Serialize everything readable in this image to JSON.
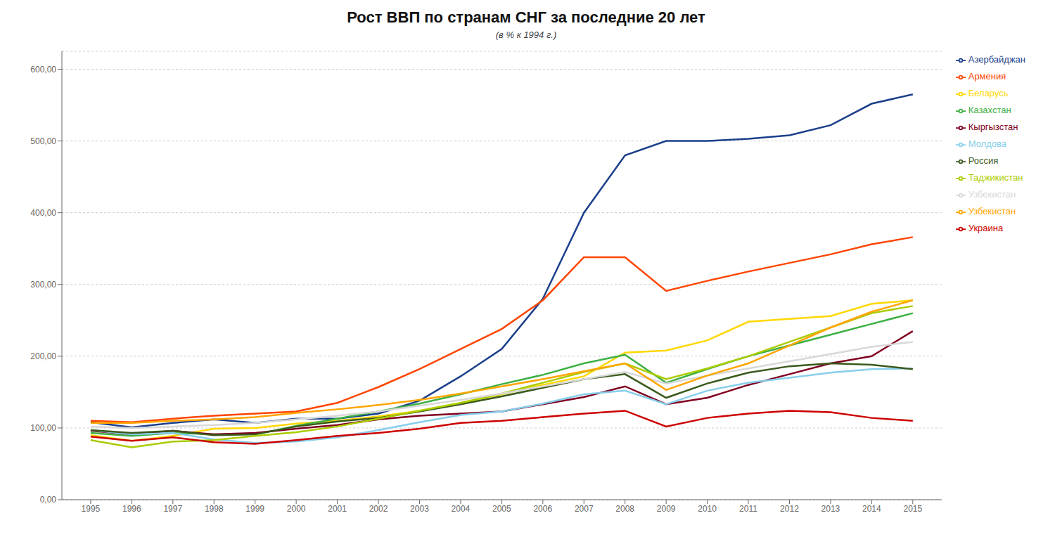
{
  "chart_data": {
    "type": "line",
    "title": "Рост ВВП по странам СНГ за последние 20 лет",
    "subtitle": "(в % к 1994 г.)",
    "x": [
      1995,
      1996,
      1997,
      1998,
      1999,
      2000,
      2001,
      2002,
      2003,
      2004,
      2005,
      2006,
      2007,
      2008,
      2009,
      2010,
      2011,
      2012,
      2013,
      2014,
      2015
    ],
    "series": [
      {
        "name": "Азербайджан",
        "color": "#1b3f8b",
        "values": [
          108,
          101,
          107,
          112,
          107,
          113,
          113,
          120,
          138,
          172,
          210,
          280,
          400,
          480,
          500,
          500,
          503,
          508,
          522,
          552,
          565
        ]
      },
      {
        "name": "Армения",
        "color": "#ff4500",
        "values": [
          110,
          108,
          113,
          117,
          120,
          123,
          135,
          157,
          182,
          210,
          238,
          278,
          338,
          338,
          291,
          305,
          318,
          330,
          342,
          356,
          366
        ]
      },
      {
        "name": "Беларусь",
        "color": "#ffd700",
        "values": [
          90,
          82,
          89,
          99,
          100,
          106,
          110,
          116,
          124,
          135,
          147,
          160,
          172,
          205,
          208,
          222,
          248,
          252,
          256,
          273,
          278
        ]
      },
      {
        "name": "Казахстан",
        "color": "#3cb043",
        "values": [
          93,
          89,
          93,
          91,
          91,
          103,
          113,
          123,
          134,
          147,
          161,
          174,
          190,
          202,
          163,
          182,
          200,
          215,
          230,
          245,
          260
        ]
      },
      {
        "name": "Кыргызстан",
        "color": "#800020",
        "values": [
          96,
          91,
          96,
          91,
          93,
          99,
          104,
          112,
          117,
          120,
          123,
          133,
          143,
          158,
          133,
          142,
          160,
          175,
          190,
          200,
          235
        ]
      },
      {
        "name": "Молдова",
        "color": "#87ceeb",
        "values": [
          97,
          91,
          93,
          84,
          79,
          81,
          87,
          97,
          108,
          118,
          123,
          134,
          147,
          152,
          133,
          152,
          163,
          170,
          177,
          182,
          183
        ]
      },
      {
        "name": "Россия",
        "color": "#3a5a1c",
        "values": [
          97,
          93,
          96,
          90,
          91,
          102,
          109,
          114,
          123,
          133,
          144,
          156,
          168,
          175,
          142,
          162,
          177,
          186,
          190,
          188,
          182
        ]
      },
      {
        "name": "Таджикистан",
        "color": "#aacc00",
        "values": [
          83,
          73,
          81,
          83,
          89,
          94,
          102,
          113,
          124,
          135,
          148,
          163,
          178,
          190,
          168,
          183,
          200,
          220,
          240,
          260,
          270
        ]
      },
      {
        "name": "Узбекистан",
        "color": "#d8d8d8",
        "values": [
          102,
          100,
          102,
          104,
          107,
          112,
          117,
          123,
          131,
          139,
          148,
          158,
          168,
          178,
          162,
          173,
          183,
          193,
          203,
          213,
          220
        ]
      },
      {
        "name": "Узбекистан",
        "color": "#ffa500",
        "values": [
          107,
          107,
          110,
          112,
          115,
          121,
          126,
          132,
          139,
          148,
          158,
          168,
          179,
          190,
          153,
          173,
          190,
          215,
          240,
          262,
          278
        ]
      },
      {
        "name": "Украина",
        "color": "#cc0000",
        "values": [
          88,
          82,
          87,
          80,
          78,
          83,
          89,
          93,
          99,
          107,
          110,
          115,
          120,
          124,
          102,
          114,
          120,
          124,
          122,
          114,
          110
        ]
      }
    ],
    "xlim": [
      1994.3,
      2015.7
    ],
    "xticks": [
      1995,
      1996,
      1997,
      1998,
      1999,
      2000,
      2001,
      2002,
      2003,
      2004,
      2005,
      2006,
      2007,
      2008,
      2009,
      2010,
      2011,
      2012,
      2013,
      2014,
      2015
    ],
    "ylim": [
      0,
      625
    ],
    "yticks": [
      {
        "value": 0,
        "label": "0,00"
      },
      {
        "value": 100,
        "label": "100,00"
      },
      {
        "value": 200,
        "label": "200,00"
      },
      {
        "value": 300,
        "label": "300,00"
      },
      {
        "value": 400,
        "label": "400,00"
      },
      {
        "value": 500,
        "label": "500,00"
      },
      {
        "value": 600,
        "label": "600,00"
      }
    ],
    "grid": "y",
    "legend": "right"
  }
}
